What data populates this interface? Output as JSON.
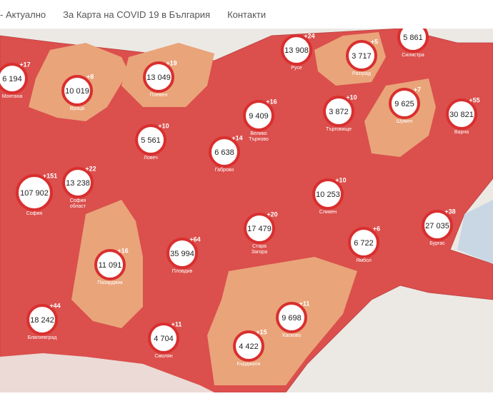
{
  "nav": [
    "- Актуално",
    "За Карта на COVID 19 в България",
    "Контакти"
  ],
  "markers": [
    {
      "count": "6 194",
      "delta": "+17",
      "name": [
        "Монтана"
      ]
    },
    {
      "count": "10 019",
      "delta": "+8",
      "name": [
        "Враца"
      ]
    },
    {
      "count": "13 049",
      "delta": "+19",
      "name": [
        "Плевен"
      ]
    },
    {
      "count": "13 908",
      "delta": "+24",
      "name": [
        "Русе"
      ]
    },
    {
      "count": "3 717",
      "delta": "+5",
      "name": [
        "Разград"
      ]
    },
    {
      "count": "5 861",
      "name": [
        "Силистра"
      ]
    },
    {
      "count": "9 409",
      "delta": "+16",
      "name": [
        "Велико",
        "Търново"
      ]
    },
    {
      "count": "3 872",
      "delta": "+10",
      "name": [
        "Търговище"
      ]
    },
    {
      "count": "9 625",
      "delta": "+7",
      "name": [
        "Шумен"
      ]
    },
    {
      "count": "30 821",
      "delta": "+55",
      "name": [
        "Варна"
      ]
    },
    {
      "count": "5 561",
      "delta": "+10",
      "name": [
        "Ловеч"
      ]
    },
    {
      "count": "6 638",
      "delta": "+14",
      "name": [
        "Габрово"
      ]
    },
    {
      "count": "107 902",
      "delta": "+151",
      "name": [
        "София"
      ]
    },
    {
      "count": "13 238",
      "delta": "+22",
      "name": [
        "София",
        "област"
      ]
    },
    {
      "count": "10 253",
      "delta": "+10",
      "name": [
        "Сливен"
      ]
    },
    {
      "count": "27 035",
      "delta": "+38",
      "name": [
        "Бургас"
      ]
    },
    {
      "count": "17 479",
      "delta": "+20",
      "name": [
        "Стара",
        "Загора"
      ]
    },
    {
      "count": "6 722",
      "delta": "+6",
      "name": [
        "Ямбол"
      ]
    },
    {
      "count": "11 091",
      "delta": "+16",
      "name": [
        "Пазарджик"
      ]
    },
    {
      "count": "35 994",
      "delta": "+64",
      "name": [
        "Пловдив"
      ]
    },
    {
      "count": "18 242",
      "delta": "+44",
      "name": [
        "Благоевград"
      ]
    },
    {
      "count": "4 704",
      "delta": "+11",
      "name": [
        "Смолян"
      ]
    },
    {
      "count": "9 698",
      "delta": "+11",
      "name": [
        "Хасково"
      ]
    },
    {
      "count": "4 422",
      "delta": "+15",
      "name": [
        "Кърджали"
      ]
    }
  ]
}
